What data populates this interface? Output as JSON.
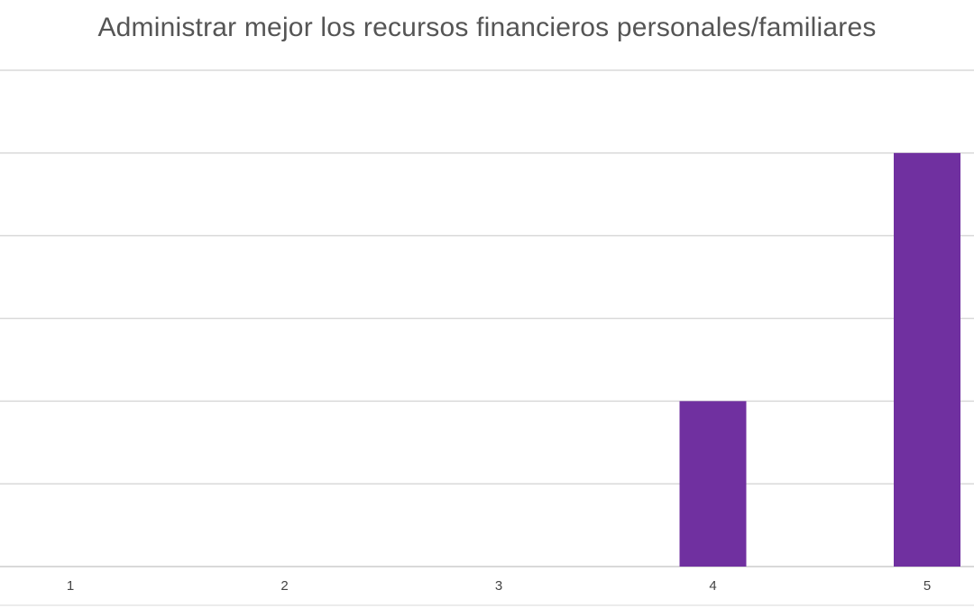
{
  "chart_data": {
    "type": "bar",
    "title": "Administrar mejor los recursos financieros personales/familiares",
    "xlabel": "",
    "ylabel": "",
    "categories": [
      "1",
      "2",
      "3",
      "4",
      "5"
    ],
    "series": [
      {
        "values": [
          0,
          0,
          0,
          2,
          5
        ]
      }
    ],
    "ylim": [
      0,
      6
    ],
    "grid": true,
    "colors": {
      "bar": "#7030a0",
      "grid": "#d9d9d9"
    }
  }
}
